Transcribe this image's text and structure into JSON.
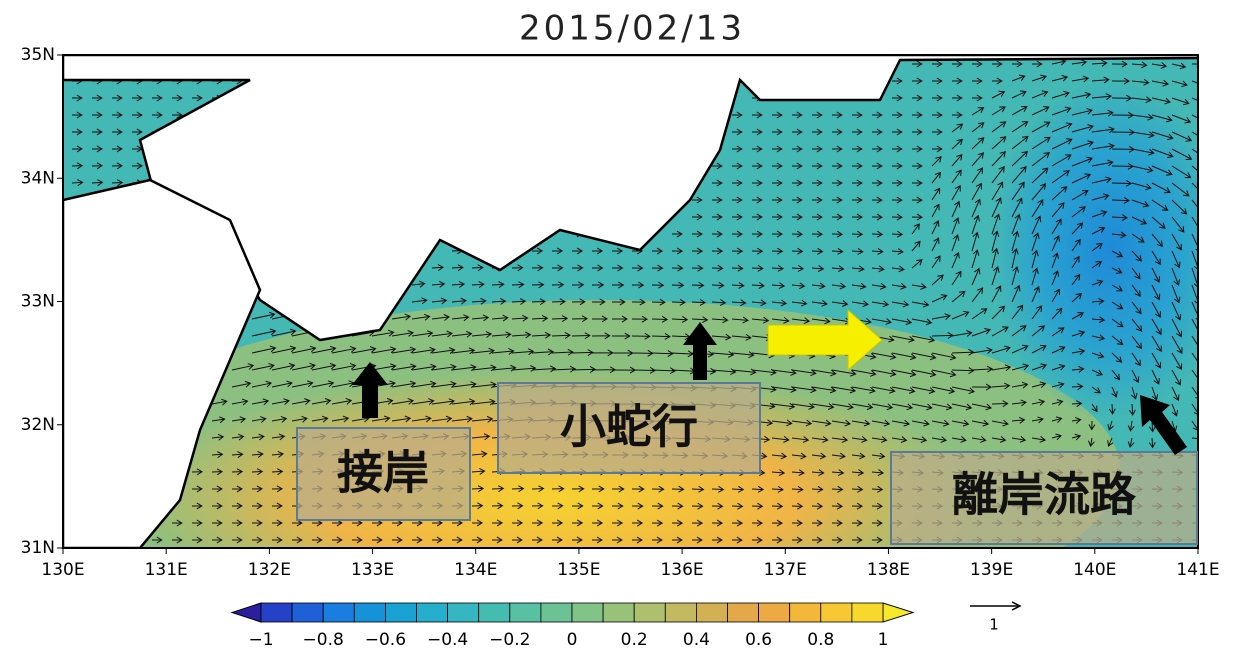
{
  "map": {
    "title": "2015/02/13",
    "lat_ticks": [
      "35N",
      "34N",
      "33N",
      "32N",
      "31N"
    ],
    "lon_ticks": [
      "130E",
      "131E",
      "132E",
      "133E",
      "134E",
      "135E",
      "136E",
      "137E",
      "138E",
      "139E",
      "140E",
      "141E"
    ],
    "annotations": [
      "接岸",
      "小蛇行",
      "離岸流路"
    ]
  },
  "colorbar": {
    "labels": [
      "−1",
      "−0.8",
      "−0.6",
      "−0.4",
      "−0.2",
      "0",
      "0.2",
      "0.4",
      "0.6",
      "0.8",
      "1"
    ],
    "colors": [
      "#2b1fa0",
      "#2541c8",
      "#1f5fd8",
      "#1a7ee0",
      "#1592d8",
      "#19a2d2",
      "#26afcc",
      "#35b6c0",
      "#45bcb2",
      "#58c0a3",
      "#6cc295",
      "#82c388",
      "#98c27a",
      "#aebf6d",
      "#c3b960",
      "#d4b055",
      "#e3a84a",
      "#eda942",
      "#f3b73a",
      "#f6c833",
      "#f7d92e",
      "#f6e82a"
    ]
  },
  "reference_vector": {
    "label": "1"
  }
}
